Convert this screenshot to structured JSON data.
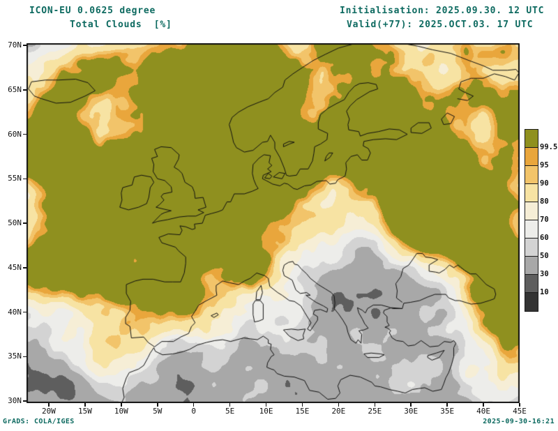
{
  "header": {
    "model_line": "ICON-EU 0.0625 degree",
    "variable_line": "Total Clouds  [%]",
    "init_line": "Initialisation: 2025.09.30. 12 UTC",
    "valid_line": "Valid(+77): 2025.OCT.03. 17 UTC"
  },
  "map": {
    "x_ticks": [
      "20W",
      "15W",
      "10W",
      "5W",
      "0",
      "5E",
      "10E",
      "15E",
      "20E",
      "25E",
      "30E",
      "35E",
      "40E",
      "45E"
    ],
    "y_ticks": [
      "70N",
      "65N",
      "60N",
      "55N",
      "50N",
      "45N",
      "40N",
      "35N",
      "30N"
    ]
  },
  "colorbar": {
    "labels": [
      "99.5",
      "95",
      "90",
      "80",
      "70",
      "60",
      "50",
      "30",
      "10"
    ],
    "colors": [
      "#8f901f",
      "#e9a63c",
      "#f2c46a",
      "#f7e3a3",
      "#f6eed6",
      "#ededea",
      "#d3d3d3",
      "#a8a8a8",
      "#5e5e5e",
      "#333333"
    ]
  },
  "footer": {
    "left": "GrADS: COLA/IGES",
    "right": "2025-09-30-16:21"
  },
  "colors": {
    "header_text": "#0d6a60",
    "axis_text": "#111111",
    "frame": "#111111",
    "background": "#ffffff"
  }
}
